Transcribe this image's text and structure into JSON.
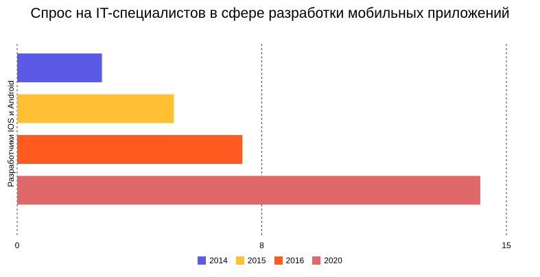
{
  "chart_data": {
    "type": "bar",
    "orientation": "horizontal",
    "title": "Спрос на IT-специалистов в сфере разработки мобильных приложений",
    "ylabel": "Разработчики IOS и Android",
    "xlabel": "",
    "xlim": [
      0,
      15
    ],
    "ticks": [
      {
        "value": 0,
        "label": "0"
      },
      {
        "value": 7.5,
        "label": "8"
      },
      {
        "value": 15,
        "label": "15"
      }
    ],
    "grid": true,
    "legend_position": "bottom",
    "series": [
      {
        "name": "2014",
        "value": 2.6,
        "color": "#5a5ae6"
      },
      {
        "name": "2015",
        "value": 4.8,
        "color": "#ffc033"
      },
      {
        "name": "2016",
        "value": 6.9,
        "color": "#ff5a1f"
      },
      {
        "name": "2020",
        "value": 14.2,
        "color": "#e0686a"
      }
    ]
  }
}
